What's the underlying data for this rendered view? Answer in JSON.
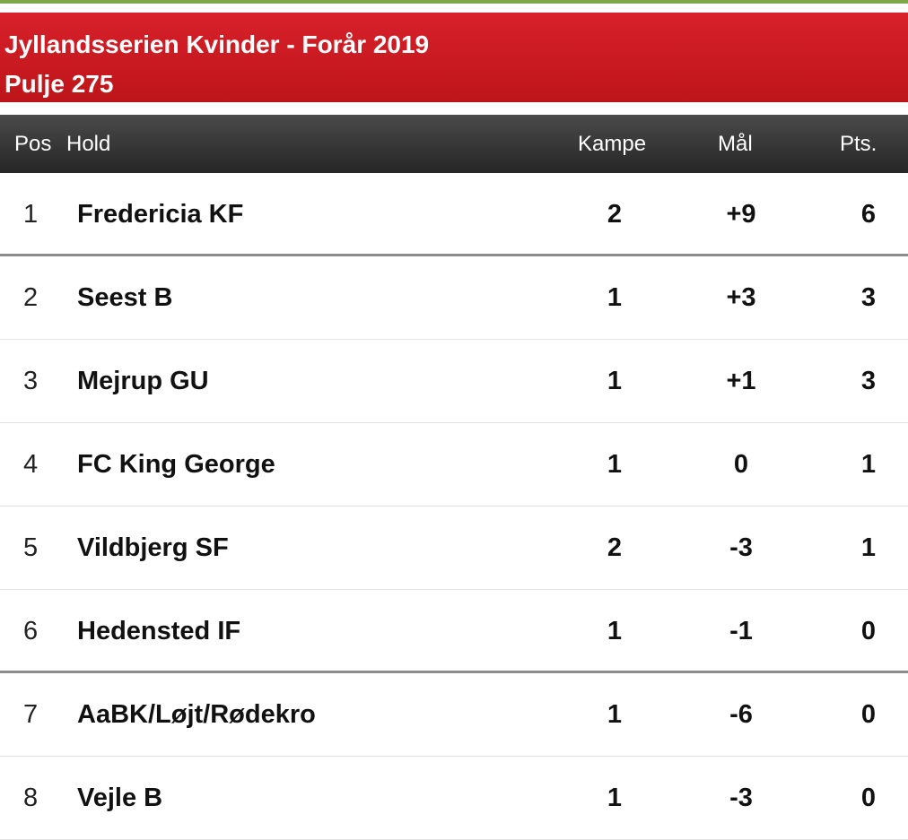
{
  "header": {
    "title_line1": "Jyllandsserien Kvinder - Forår 2019",
    "title_line2": "Pulje 275"
  },
  "columns": {
    "pos": "Pos",
    "hold": "Hold",
    "kampe": "Kampe",
    "maal": "Mål",
    "pts": "Pts."
  },
  "rows": [
    {
      "pos": "1",
      "team": "Fredericia KF",
      "kampe": "2",
      "maal": "+9",
      "pts": "6"
    },
    {
      "pos": "2",
      "team": "Seest B",
      "kampe": "1",
      "maal": "+3",
      "pts": "3"
    },
    {
      "pos": "3",
      "team": "Mejrup GU",
      "kampe": "1",
      "maal": "+1",
      "pts": "3"
    },
    {
      "pos": "4",
      "team": "FC King George",
      "kampe": "1",
      "maal": "0",
      "pts": "1"
    },
    {
      "pos": "5",
      "team": "Vildbjerg SF",
      "kampe": "2",
      "maal": "-3",
      "pts": "1"
    },
    {
      "pos": "6",
      "team": "Hedensted IF",
      "kampe": "1",
      "maal": "-1",
      "pts": "0"
    },
    {
      "pos": "7",
      "team": "AaBK/Løjt/Rødekro",
      "kampe": "1",
      "maal": "-6",
      "pts": "0"
    },
    {
      "pos": "8",
      "team": "Vejle B",
      "kampe": "1",
      "maal": "-3",
      "pts": "0"
    }
  ],
  "colors": {
    "title_bar": "#cc1b22",
    "table_head": "#333333",
    "top_line": "#7fa84a"
  }
}
